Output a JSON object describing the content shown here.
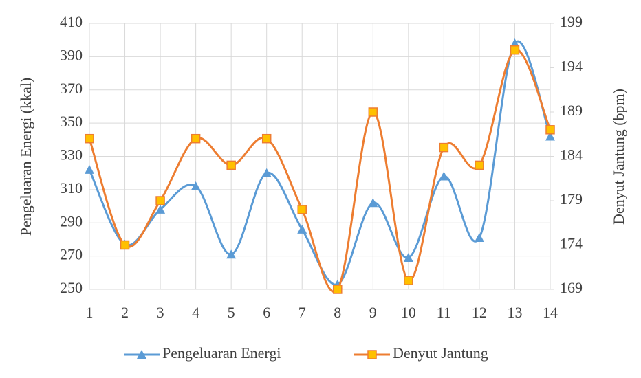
{
  "chart_data": {
    "type": "line",
    "smooth": true,
    "ylabel": "Pengeluaran Energi (kkal)",
    "y2label": "Denyut Jantung (bpm)",
    "x": [
      1,
      2,
      3,
      4,
      5,
      6,
      7,
      8,
      9,
      10,
      11,
      12,
      13,
      14
    ],
    "xlim": [
      1,
      14
    ],
    "xticks": [
      1,
      2,
      3,
      4,
      5,
      6,
      7,
      8,
      9,
      10,
      11,
      12,
      13,
      14
    ],
    "ylim": [
      250,
      410
    ],
    "yticks": [
      250,
      270,
      290,
      310,
      330,
      350,
      370,
      390,
      410
    ],
    "y2lim": [
      169,
      199
    ],
    "y2ticks": [
      169,
      174,
      179,
      184,
      189,
      194,
      199
    ],
    "grid": true,
    "legend": "bottom",
    "series": [
      {
        "name": "Pengeluaran Energi",
        "color": "#5b9bd5",
        "marker": "triangle",
        "values": [
          322,
          277,
          298,
          312,
          271,
          320,
          286,
          253,
          302,
          269,
          318,
          281,
          398,
          342
        ]
      },
      {
        "name": "Denyut Jantung",
        "color": "#ed7d31",
        "marker": "square",
        "marker_fill": "#ffc000",
        "axis": "y2",
        "values": [
          186,
          174,
          179,
          186,
          183,
          186,
          178,
          169,
          189,
          170,
          185,
          183,
          196,
          187
        ]
      }
    ]
  }
}
